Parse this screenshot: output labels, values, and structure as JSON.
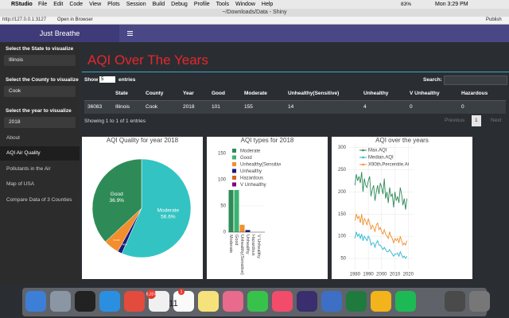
{
  "menubar": {
    "app": "RStudio",
    "menus": [
      "File",
      "Edit",
      "Code",
      "View",
      "Plots",
      "Session",
      "Build",
      "Debug",
      "Profile",
      "Tools",
      "Window",
      "Help"
    ],
    "battery": "83%",
    "clock": "Mon 3:29 PM"
  },
  "window": {
    "title": "~/Downloads/Data - Shiny",
    "url": "http://127.0.0.1:3127",
    "open_in_browser": "Open in Browser",
    "publish": "Publish"
  },
  "header": {
    "brand": "Just Breathe"
  },
  "sidebar": {
    "selects": [
      {
        "label": "Select the State to visualize",
        "value": "Illinois"
      },
      {
        "label": "Select the County to visualize",
        "value": "Cook"
      },
      {
        "label": "Select the year to visualize",
        "value": "2018"
      }
    ],
    "nav": [
      "About",
      "AQI Air Quality",
      "Pollutants in the Air",
      "Map of USA",
      "Compare Data of 3 Counties"
    ],
    "active": 1
  },
  "main": {
    "title": "AQI Over The Years",
    "show": "Show",
    "length_value": "5",
    "entries": "entries",
    "search": "Search:",
    "table": {
      "columns": [
        "State",
        "County",
        "Year",
        "Good",
        "Moderate",
        "Unhealthy(Sensitive)",
        "Unhealthy",
        "V Unhealthy",
        "Hazardous"
      ],
      "rows": [
        [
          "36083",
          "Illinois",
          "Cook",
          "2018",
          "101",
          "155",
          "14",
          "4",
          "0",
          "0"
        ]
      ]
    },
    "info": "Showing 1 to 1 of 1 entries",
    "pagination": [
      "Previous",
      "1",
      "Next"
    ]
  },
  "chart_data": [
    {
      "type": "pie",
      "title": "AQI Quality for year  2018",
      "categories": [
        "Moderate",
        "Unhealthy",
        "Unhealthy(Sensitive)",
        "Good"
      ],
      "values": [
        56.6,
        1.46,
        5.11,
        36.9
      ],
      "value_labels": [
        "56.6%",
        "1.46%",
        "5.11%",
        "36.9%"
      ],
      "colors": [
        "#33c3c3",
        "#1a1a7a",
        "#f28e2b",
        "#2e8b57"
      ]
    },
    {
      "type": "bar",
      "title": "AQI types for 2018",
      "categories": [
        "Moderate",
        "Good",
        "Unhealthy(Sensitive)",
        "Unhealthy",
        "Hazardous",
        "V Unhealthy"
      ],
      "values": [
        155,
        101,
        14,
        4,
        0,
        0
      ],
      "colors": [
        "#2e8b57",
        "#3cb371",
        "#f28e2b",
        "#1a1a7a",
        "#d2691e",
        "#800080"
      ],
      "ylim": [
        0,
        165
      ],
      "yticks": [
        0,
        50,
        100,
        150
      ],
      "legend": "top-left"
    },
    {
      "type": "line",
      "title": "AQI over the years",
      "x": [
        1980,
        1981,
        1982,
        1983,
        1984,
        1985,
        1986,
        1987,
        1988,
        1989,
        1990,
        1991,
        1992,
        1993,
        1994,
        1995,
        1996,
        1997,
        1998,
        1999,
        2000,
        2001,
        2002,
        2003,
        2004,
        2005,
        2006,
        2007,
        2008,
        2009,
        2010,
        2011,
        2012,
        2013,
        2014,
        2015,
        2016,
        2017,
        2018,
        2019
      ],
      "series": [
        {
          "name": "Max.AQI",
          "color": "#2e8b57",
          "values": [
            215,
            240,
            225,
            235,
            220,
            245,
            200,
            230,
            215,
            210,
            225,
            235,
            190,
            205,
            215,
            180,
            200,
            215,
            195,
            220,
            210,
            195,
            230,
            185,
            200,
            175,
            210,
            190,
            195,
            165,
            200,
            180,
            190,
            175,
            210,
            195,
            170,
            185,
            160,
            185
          ]
        },
        {
          "name": "Median.AQI",
          "color": "#2bb5d0",
          "values": [
            95,
            110,
            100,
            105,
            95,
            105,
            90,
            100,
            95,
            90,
            100,
            95,
            80,
            85,
            85,
            75,
            85,
            90,
            80,
            80,
            75,
            70,
            75,
            70,
            65,
            65,
            70,
            65,
            60,
            55,
            60,
            60,
            62,
            55,
            65,
            58,
            52,
            55,
            50,
            55
          ]
        },
        {
          "name": "X90th.Percentile.AQI",
          "color": "#f28e2b",
          "values": [
            135,
            150,
            140,
            145,
            130,
            150,
            125,
            140,
            135,
            125,
            140,
            130,
            115,
            125,
            120,
            110,
            125,
            130,
            115,
            120,
            110,
            105,
            115,
            105,
            100,
            95,
            110,
            100,
            95,
            85,
            95,
            90,
            95,
            85,
            100,
            90,
            80,
            85,
            80,
            90
          ]
        }
      ],
      "xlim": [
        1975,
        2024
      ],
      "xticks": [
        1980,
        1990,
        2000,
        2010,
        2020
      ],
      "ylim": [
        25,
        310
      ],
      "yticks": [
        50,
        100,
        150,
        200,
        250,
        300
      ],
      "grid": true,
      "legend": "top-left"
    }
  ],
  "dock": {
    "mail_badge": "6,324",
    "calendar_day": "11",
    "calendar_badge": "1"
  }
}
